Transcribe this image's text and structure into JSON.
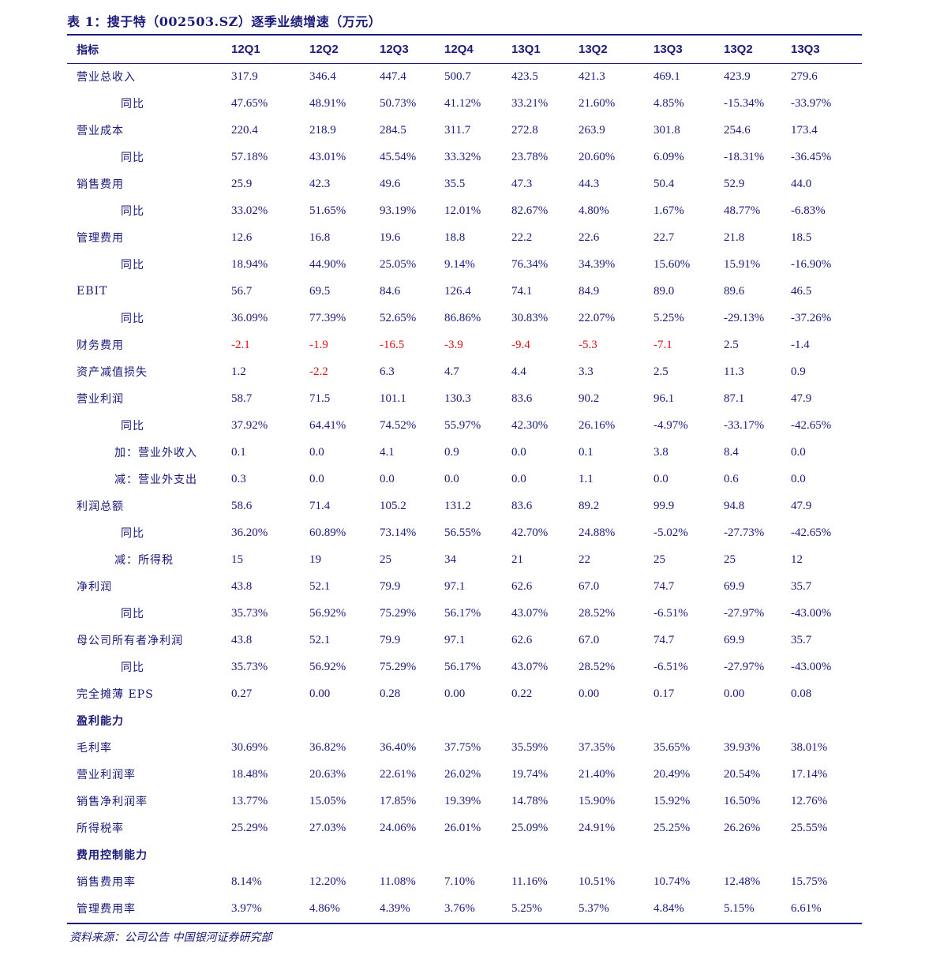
{
  "title": "表 1：搜于特（002503.SZ）逐季业绩增速（万元）",
  "source": "资料来源：公司公告 中国银河证券研究部",
  "colors": {
    "text": "#1a1a7a",
    "negative": "#e01010"
  },
  "header": [
    "指标",
    "12Q1",
    "12Q2",
    "12Q3",
    "12Q4",
    "13Q1",
    "13Q2",
    "13Q3",
    "13Q2",
    "13Q3"
  ],
  "rows": [
    {
      "label": "营业总收入",
      "indent": 0,
      "values": [
        "317.9",
        "346.4",
        "447.4",
        "500.7",
        "423.5",
        "421.3",
        "469.1",
        "423.9",
        "279.6"
      ]
    },
    {
      "label": "同比",
      "indent": 1,
      "values": [
        "47.65%",
        "48.91%",
        "50.73%",
        "41.12%",
        "33.21%",
        "21.60%",
        "4.85%",
        "-15.34%",
        "-33.97%"
      ]
    },
    {
      "label": "营业成本",
      "indent": 0,
      "values": [
        "220.4",
        "218.9",
        "284.5",
        "311.7",
        "272.8",
        "263.9",
        "301.8",
        "254.6",
        "173.4"
      ]
    },
    {
      "label": "同比",
      "indent": 1,
      "values": [
        "57.18%",
        "43.01%",
        "45.54%",
        "33.32%",
        "23.78%",
        "20.60%",
        "6.09%",
        "-18.31%",
        "-36.45%"
      ]
    },
    {
      "label": "销售费用",
      "indent": 0,
      "values": [
        "25.9",
        "42.3",
        "49.6",
        "35.5",
        "47.3",
        "44.3",
        "50.4",
        "52.9",
        "44.0"
      ]
    },
    {
      "label": "同比",
      "indent": 1,
      "values": [
        "33.02%",
        "51.65%",
        "93.19%",
        "12.01%",
        "82.67%",
        "4.80%",
        "1.67%",
        "48.77%",
        "-6.83%"
      ]
    },
    {
      "label": "管理费用",
      "indent": 0,
      "values": [
        "12.6",
        "16.8",
        "19.6",
        "18.8",
        "22.2",
        "22.6",
        "22.7",
        "21.8",
        "18.5"
      ]
    },
    {
      "label": "同比",
      "indent": 1,
      "values": [
        "18.94%",
        "44.90%",
        "25.05%",
        "9.14%",
        "76.34%",
        "34.39%",
        "15.60%",
        "15.91%",
        "-16.90%"
      ]
    },
    {
      "label": "EBIT",
      "indent": 0,
      "values": [
        "56.7",
        "69.5",
        "84.6",
        "126.4",
        "74.1",
        "84.9",
        "89.0",
        "89.6",
        "46.5"
      ]
    },
    {
      "label": "同比",
      "indent": 1,
      "values": [
        "36.09%",
        "77.39%",
        "52.65%",
        "86.86%",
        "30.83%",
        "22.07%",
        "5.25%",
        "-29.13%",
        "-37.26%"
      ]
    },
    {
      "label": "财务费用",
      "indent": 0,
      "values": [
        "-2.1",
        "-1.9",
        "-16.5",
        "-3.9",
        "-9.4",
        "-5.3",
        "-7.1",
        "2.5",
        "-1.4"
      ],
      "red": [
        true,
        true,
        true,
        true,
        true,
        true,
        true,
        false,
        false
      ]
    },
    {
      "label": "资产减值损失",
      "indent": 0,
      "values": [
        "1.2",
        "-2.2",
        "6.3",
        "4.7",
        "4.4",
        "3.3",
        "2.5",
        "11.3",
        "0.9"
      ],
      "red": [
        false,
        true,
        false,
        false,
        false,
        false,
        false,
        false,
        false
      ]
    },
    {
      "label": "营业利润",
      "indent": 0,
      "values": [
        "58.7",
        "71.5",
        "101.1",
        "130.3",
        "83.6",
        "90.2",
        "96.1",
        "87.1",
        "47.9"
      ]
    },
    {
      "label": "同比",
      "indent": 1,
      "values": [
        "37.92%",
        "64.41%",
        "74.52%",
        "55.97%",
        "42.30%",
        "26.16%",
        "-4.97%",
        "-33.17%",
        "-42.65%"
      ]
    },
    {
      "label": "加：营业外收入",
      "indent": 2,
      "values": [
        "0.1",
        "0.0",
        "4.1",
        "0.9",
        "0.0",
        "0.1",
        "3.8",
        "8.4",
        "0.0"
      ]
    },
    {
      "label": "减：营业外支出",
      "indent": 2,
      "values": [
        "0.3",
        "0.0",
        "0.0",
        "0.0",
        "0.0",
        "1.1",
        "0.0",
        "0.6",
        "0.0"
      ]
    },
    {
      "label": "利润总额",
      "indent": 0,
      "values": [
        "58.6",
        "71.4",
        "105.2",
        "131.2",
        "83.6",
        "89.2",
        "99.9",
        "94.8",
        "47.9"
      ]
    },
    {
      "label": "同比",
      "indent": 1,
      "values": [
        "36.20%",
        "60.89%",
        "73.14%",
        "56.55%",
        "42.70%",
        "24.88%",
        "-5.02%",
        "-27.73%",
        "-42.65%"
      ]
    },
    {
      "label": "减：所得税",
      "indent": 2,
      "values": [
        "15",
        "19",
        "25",
        "34",
        "21",
        "22",
        "25",
        "25",
        "12"
      ]
    },
    {
      "label": "净利润",
      "indent": 0,
      "values": [
        "43.8",
        "52.1",
        "79.9",
        "97.1",
        "62.6",
        "67.0",
        "74.7",
        "69.9",
        "35.7"
      ]
    },
    {
      "label": "同比",
      "indent": 1,
      "values": [
        "35.73%",
        "56.92%",
        "75.29%",
        "56.17%",
        "43.07%",
        "28.52%",
        "-6.51%",
        "-27.97%",
        "-43.00%"
      ]
    },
    {
      "label": "母公司所有者净利润",
      "indent": 0,
      "values": [
        "43.8",
        "52.1",
        "79.9",
        "97.1",
        "62.6",
        "67.0",
        "74.7",
        "69.9",
        "35.7"
      ]
    },
    {
      "label": "同比",
      "indent": 1,
      "values": [
        "35.73%",
        "56.92%",
        "75.29%",
        "56.17%",
        "43.07%",
        "28.52%",
        "-6.51%",
        "-27.97%",
        "-43.00%"
      ]
    },
    {
      "label": "完全摊薄 EPS",
      "indent": 0,
      "values": [
        "0.27",
        "0.00",
        "0.28",
        "0.00",
        "0.22",
        "0.00",
        "0.17",
        "0.00",
        "0.08"
      ]
    },
    {
      "label": "盈利能力",
      "section": true,
      "values": []
    },
    {
      "label": "毛利率",
      "indent": 0,
      "values": [
        "30.69%",
        "36.82%",
        "36.40%",
        "37.75%",
        "35.59%",
        "37.35%",
        "35.65%",
        "39.93%",
        "38.01%"
      ]
    },
    {
      "label": "营业利润率",
      "indent": 0,
      "values": [
        "18.48%",
        "20.63%",
        "22.61%",
        "26.02%",
        "19.74%",
        "21.40%",
        "20.49%",
        "20.54%",
        "17.14%"
      ]
    },
    {
      "label": "销售净利润率",
      "indent": 0,
      "values": [
        "13.77%",
        "15.05%",
        "17.85%",
        "19.39%",
        "14.78%",
        "15.90%",
        "15.92%",
        "16.50%",
        "12.76%"
      ]
    },
    {
      "label": "所得税率",
      "indent": 0,
      "values": [
        "25.29%",
        "27.03%",
        "24.06%",
        "26.01%",
        "25.09%",
        "24.91%",
        "25.25%",
        "26.26%",
        "25.55%"
      ]
    },
    {
      "label": "费用控制能力",
      "section": true,
      "values": []
    },
    {
      "label": "销售费用率",
      "indent": 0,
      "values": [
        "8.14%",
        "12.20%",
        "11.08%",
        "7.10%",
        "11.16%",
        "10.51%",
        "10.74%",
        "12.48%",
        "15.75%"
      ]
    },
    {
      "label": "管理费用率",
      "indent": 0,
      "values": [
        "3.97%",
        "4.86%",
        "4.39%",
        "3.76%",
        "5.25%",
        "5.37%",
        "4.84%",
        "5.15%",
        "6.61%"
      ]
    }
  ]
}
